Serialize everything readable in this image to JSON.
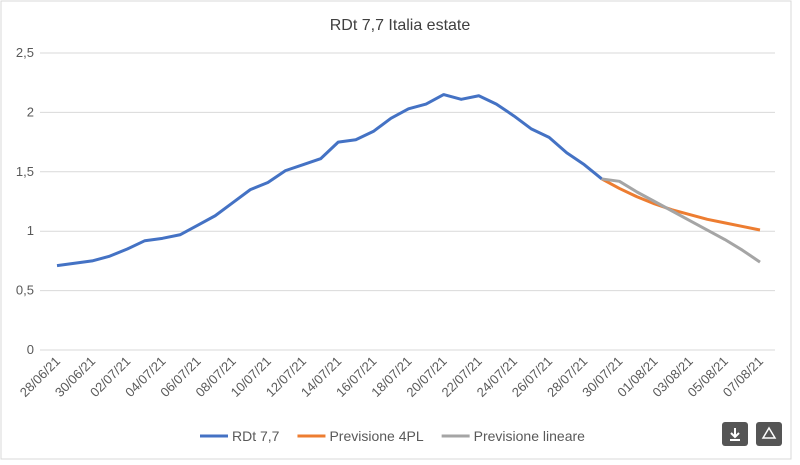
{
  "chart_data": {
    "type": "line",
    "title": "RDt 7,7 Italia estate",
    "categories": [
      "28/06/21",
      null,
      "30/06/21",
      null,
      "02/07/21",
      null,
      "04/07/21",
      null,
      "06/07/21",
      null,
      "08/07/21",
      null,
      "10/07/21",
      null,
      "12/07/21",
      null,
      "14/07/21",
      null,
      "16/07/21",
      null,
      "18/07/21",
      null,
      "20/07/21",
      null,
      "22/07/21",
      null,
      "24/07/21",
      null,
      "26/07/21",
      null,
      "28/07/21",
      null,
      "30/07/21",
      null,
      "01/08/21",
      null,
      "03/08/21",
      null,
      "05/08/21",
      null,
      "07/08/21"
    ],
    "series": [
      {
        "name": "RDt 7,7",
        "color": "#4472c4",
        "values": [
          0.71,
          0.73,
          0.75,
          0.79,
          0.85,
          0.92,
          0.94,
          0.97,
          1.05,
          1.13,
          1.24,
          1.35,
          1.41,
          1.51,
          1.56,
          1.61,
          1.75,
          1.77,
          1.84,
          1.95,
          2.03,
          2.07,
          2.15,
          2.11,
          2.14,
          2.07,
          1.97,
          1.86,
          1.79,
          1.66,
          1.56,
          1.44,
          null,
          null,
          null,
          null,
          null,
          null,
          null,
          null,
          null
        ]
      },
      {
        "name": "Previsione 4PL",
        "color": "#ed7d31",
        "values": [
          null,
          null,
          null,
          null,
          null,
          null,
          null,
          null,
          null,
          null,
          null,
          null,
          null,
          null,
          null,
          null,
          null,
          null,
          null,
          null,
          null,
          null,
          null,
          null,
          null,
          null,
          null,
          null,
          null,
          null,
          null,
          1.44,
          1.36,
          1.29,
          1.23,
          1.18,
          1.14,
          1.1,
          1.07,
          1.04,
          1.01
        ]
      },
      {
        "name": "Previsione lineare",
        "color": "#a5a5a5",
        "values": [
          null,
          null,
          null,
          null,
          null,
          null,
          null,
          null,
          null,
          null,
          null,
          null,
          null,
          null,
          null,
          null,
          null,
          null,
          null,
          null,
          null,
          null,
          null,
          null,
          null,
          null,
          null,
          null,
          null,
          null,
          null,
          1.44,
          1.42,
          1.33,
          1.25,
          1.17,
          1.09,
          1.01,
          0.93,
          0.84,
          0.74
        ]
      }
    ],
    "ylim": [
      0,
      2.5
    ],
    "yticks": [
      0,
      {
        "value": 0.5,
        "label": "0,5"
      },
      1,
      {
        "value": 1.5,
        "label": "1,5"
      },
      2,
      {
        "value": 2.5,
        "label": "2,5"
      }
    ],
    "grid": true,
    "legend": "bottom"
  }
}
